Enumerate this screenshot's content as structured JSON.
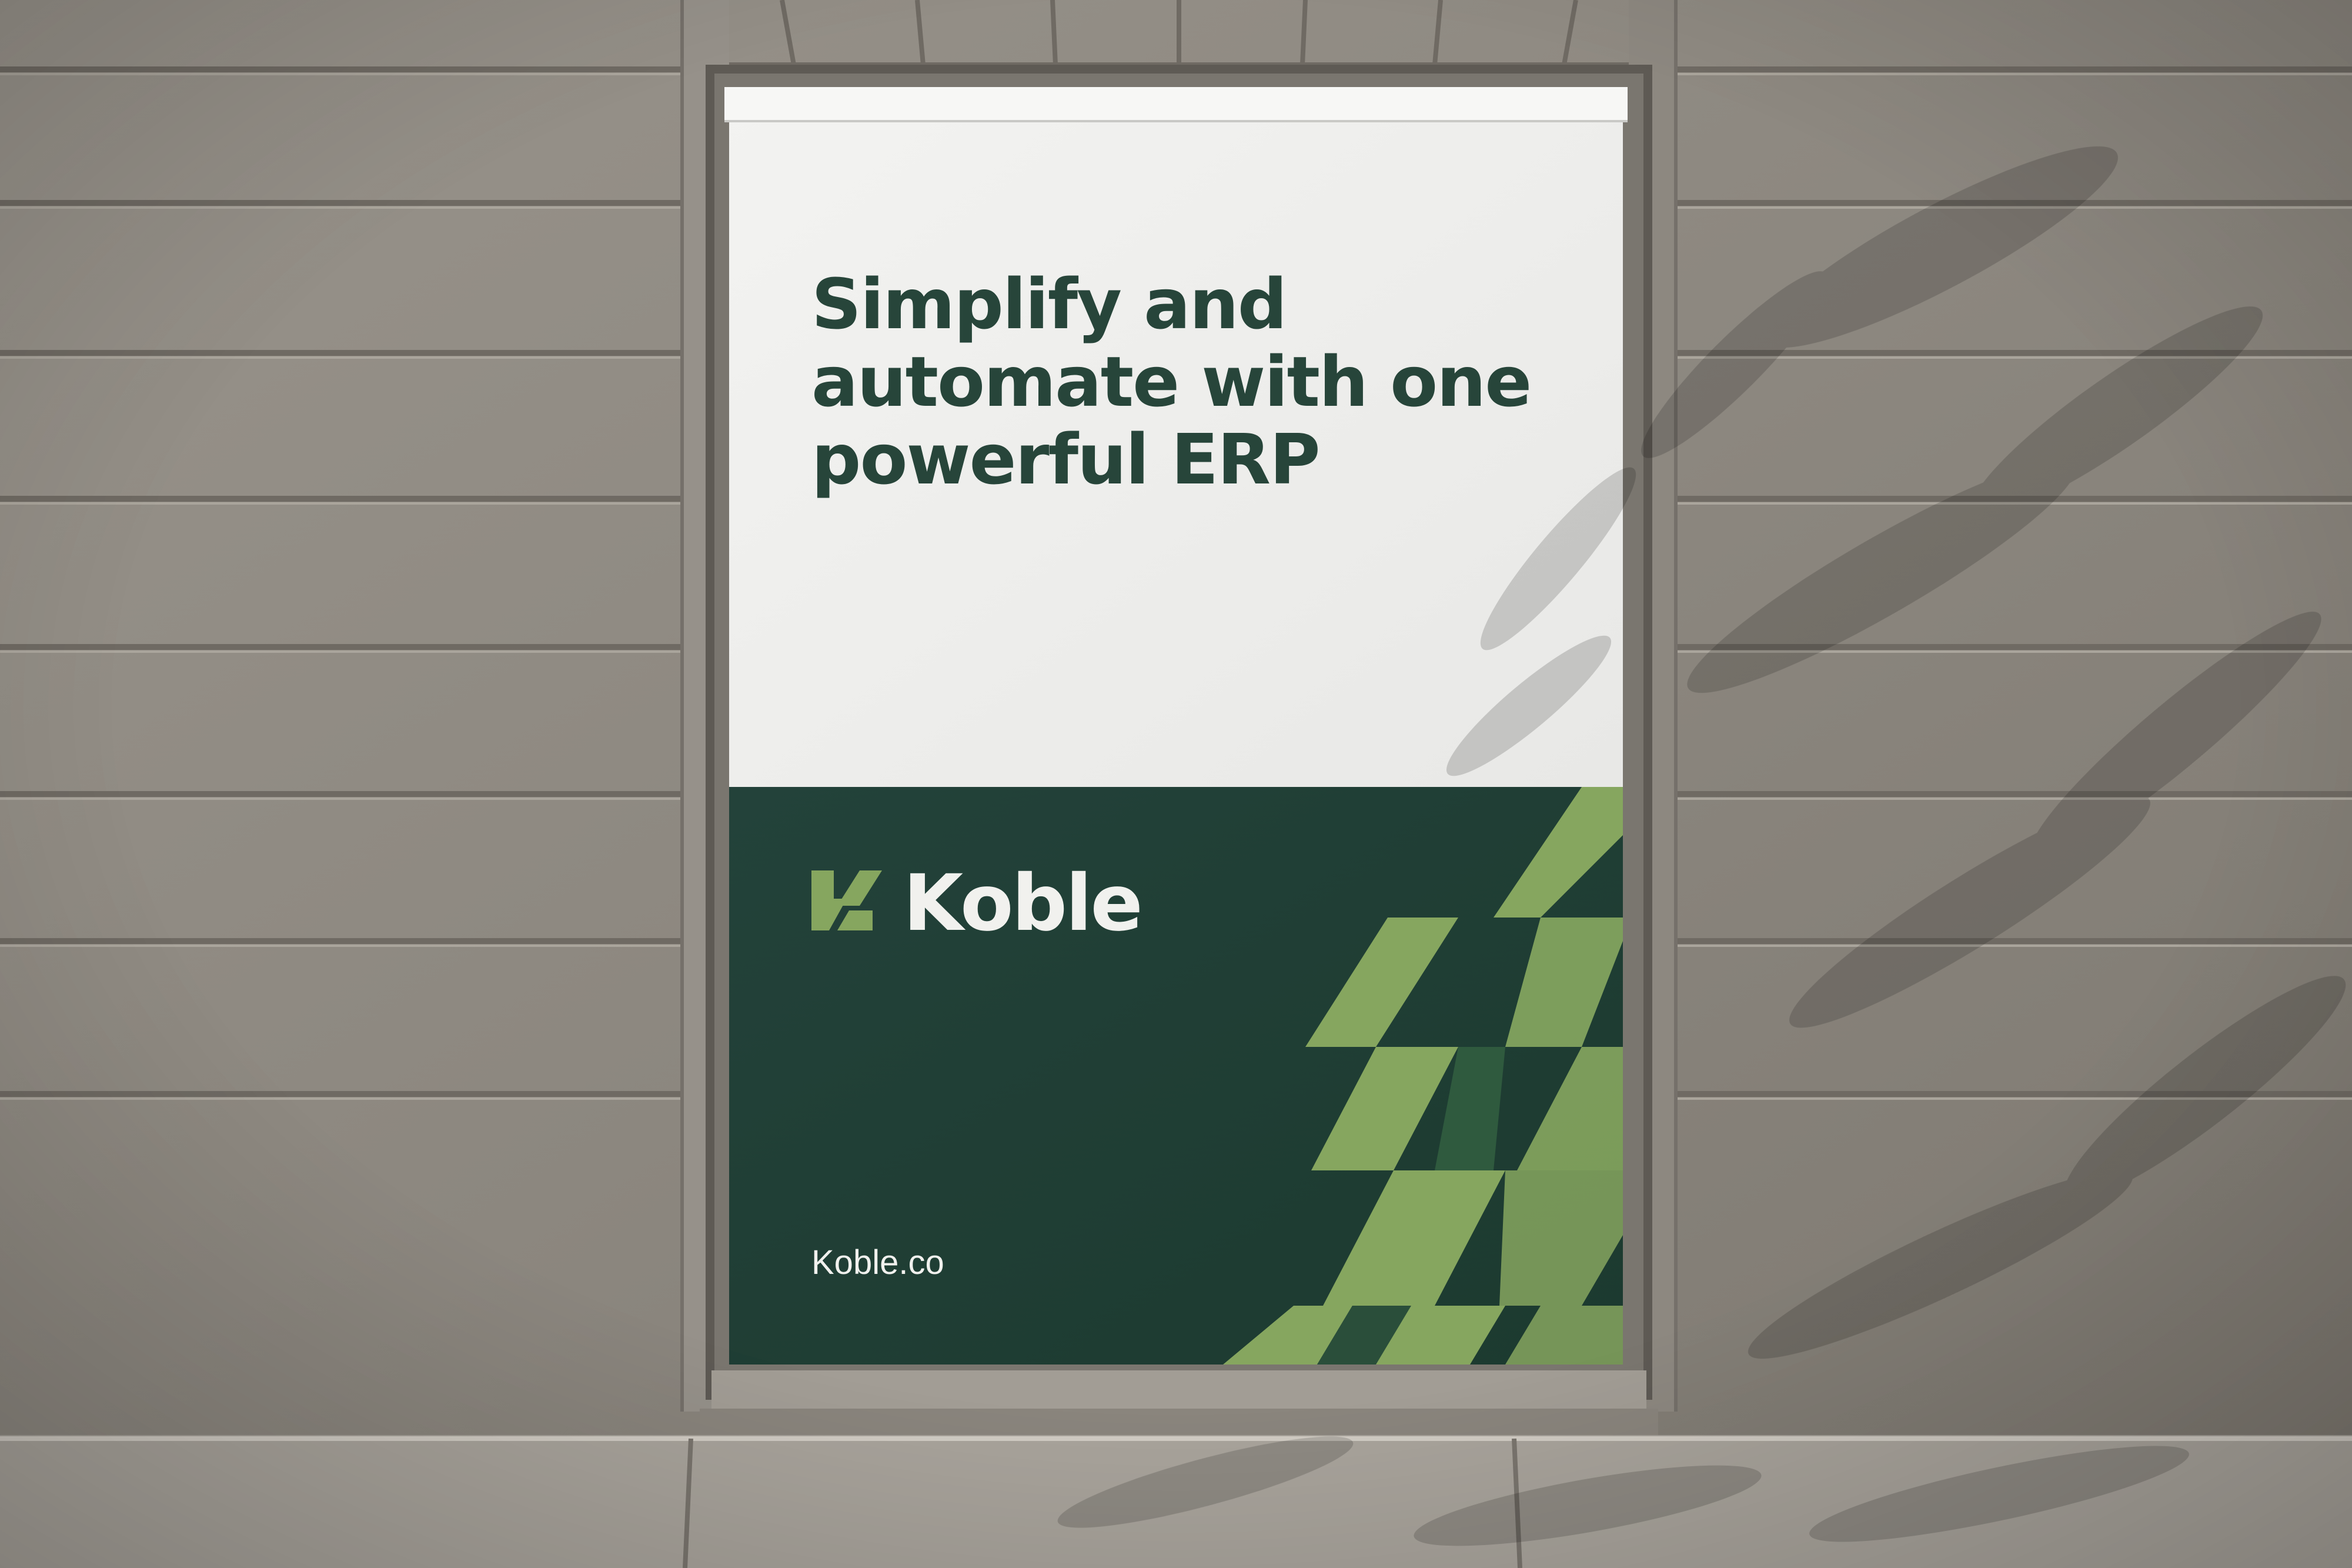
{
  "poster": {
    "headline_lines": [
      "Simplify and",
      "automate with one",
      "powerful ERP"
    ],
    "brand_name": "Koble",
    "website": "Koble.co"
  },
  "icons": {
    "logo": "koble-logo-icon"
  },
  "colors": {
    "wall": "#8f8a82",
    "poster_paper": "#f0f0ee",
    "dark_green": "#213f33",
    "light_green": "#86a65f",
    "headline_text": "#27453a",
    "light_text": "#f1f1ee"
  }
}
